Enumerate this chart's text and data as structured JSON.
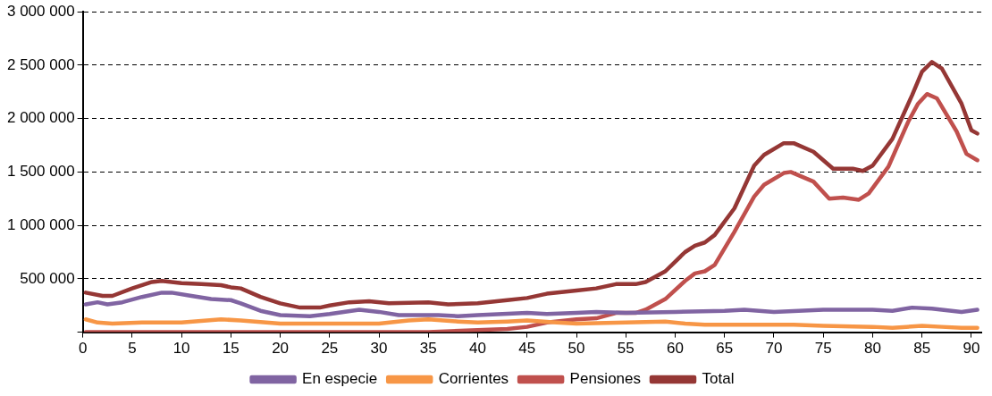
{
  "chart_data": {
    "type": "line",
    "legend": "bottom",
    "grid": "y",
    "marker": "none",
    "line_style": "solid",
    "xlim": [
      0,
      91
    ],
    "xticks": [
      0,
      5,
      10,
      15,
      20,
      25,
      30,
      35,
      40,
      45,
      50,
      55,
      60,
      65,
      70,
      75,
      80,
      85,
      90
    ],
    "ylim": [
      0,
      3000000
    ],
    "yticks": [
      {
        "value": 0,
        "label": null
      },
      {
        "value": 500000,
        "label": "500 000"
      },
      {
        "value": 1000000,
        "label": "1 000 000"
      },
      {
        "value": 1500000,
        "label": "1 500 000"
      },
      {
        "value": 2000000,
        "label": "2 000 000"
      },
      {
        "value": 2500000,
        "label": "2 500 000"
      },
      {
        "value": 3000000,
        "label": "3 000 000"
      }
    ],
    "series": [
      {
        "name": "En especie",
        "color": "#8064a2",
        "x": [
          0.3,
          1.5,
          2.5,
          4,
          6,
          8,
          9,
          11,
          13,
          15,
          16,
          18,
          20,
          23,
          25,
          28,
          30,
          32,
          36,
          38,
          40,
          45,
          47,
          50,
          52,
          55,
          60,
          65,
          67,
          70,
          75,
          80,
          82,
          84,
          86,
          88,
          89,
          90.6
        ],
        "values": [
          260000,
          280000,
          260000,
          280000,
          330000,
          370000,
          370000,
          340000,
          310000,
          300000,
          270000,
          200000,
          160000,
          150000,
          170000,
          210000,
          190000,
          160000,
          160000,
          150000,
          160000,
          180000,
          170000,
          180000,
          190000,
          180000,
          190000,
          200000,
          210000,
          190000,
          210000,
          210000,
          200000,
          230000,
          220000,
          200000,
          190000,
          210000
        ]
      },
      {
        "name": "Corrientes",
        "color": "#f79646",
        "x": [
          0.3,
          1.5,
          3,
          6,
          10,
          14,
          16,
          20,
          25,
          28,
          30,
          33,
          35,
          38,
          40,
          43,
          45,
          48,
          50,
          55,
          59,
          61,
          63,
          70,
          72,
          75,
          80,
          82,
          85,
          87,
          89,
          90.6
        ],
        "values": [
          120000,
          90000,
          80000,
          90000,
          90000,
          120000,
          110000,
          80000,
          80000,
          80000,
          80000,
          110000,
          120000,
          100000,
          90000,
          100000,
          110000,
          90000,
          80000,
          90000,
          100000,
          80000,
          70000,
          70000,
          70000,
          60000,
          50000,
          40000,
          60000,
          50000,
          40000,
          40000
        ]
      },
      {
        "name": "Pensiones",
        "color": "#c0504d",
        "x": [
          0.3,
          10,
          20,
          30,
          35,
          40,
          43,
          45,
          47,
          50,
          52,
          54,
          56,
          57,
          59,
          61,
          62,
          63,
          64,
          66,
          68,
          69,
          71,
          71.7,
          74,
          75.6,
          77,
          78.6,
          79.6,
          81.6,
          83.6,
          84.6,
          85.5,
          86.5,
          88.5,
          89.5,
          90.6
        ],
        "values": [
          0,
          0,
          0,
          0,
          0,
          20000,
          30000,
          50000,
          90000,
          120000,
          130000,
          180000,
          180000,
          210000,
          310000,
          480000,
          550000,
          570000,
          630000,
          940000,
          1270000,
          1380000,
          1490000,
          1500000,
          1410000,
          1250000,
          1260000,
          1240000,
          1300000,
          1550000,
          1970000,
          2140000,
          2230000,
          2190000,
          1880000,
          1670000,
          1610000
        ]
      },
      {
        "name": "Total",
        "color": "#953735",
        "x": [
          0.3,
          2,
          3,
          5,
          7,
          8,
          10,
          12,
          14,
          15,
          16,
          18,
          20,
          22,
          24,
          25,
          27,
          29,
          31,
          35,
          37,
          40,
          43,
          45,
          47,
          50,
          52,
          54,
          56,
          57,
          59,
          61,
          62,
          63,
          64,
          66,
          68,
          69,
          71,
          72,
          74,
          76,
          78,
          79,
          80,
          82,
          84,
          85,
          86,
          87,
          89,
          90,
          90.6
        ],
        "values": [
          370000,
          340000,
          340000,
          410000,
          470000,
          480000,
          460000,
          450000,
          440000,
          420000,
          410000,
          330000,
          270000,
          230000,
          230000,
          250000,
          280000,
          290000,
          270000,
          280000,
          260000,
          270000,
          300000,
          320000,
          360000,
          390000,
          410000,
          450000,
          450000,
          470000,
          570000,
          750000,
          810000,
          840000,
          910000,
          1160000,
          1560000,
          1660000,
          1770000,
          1770000,
          1690000,
          1530000,
          1530000,
          1510000,
          1560000,
          1810000,
          2220000,
          2440000,
          2530000,
          2470000,
          2140000,
          1890000,
          1860000
        ]
      }
    ]
  }
}
